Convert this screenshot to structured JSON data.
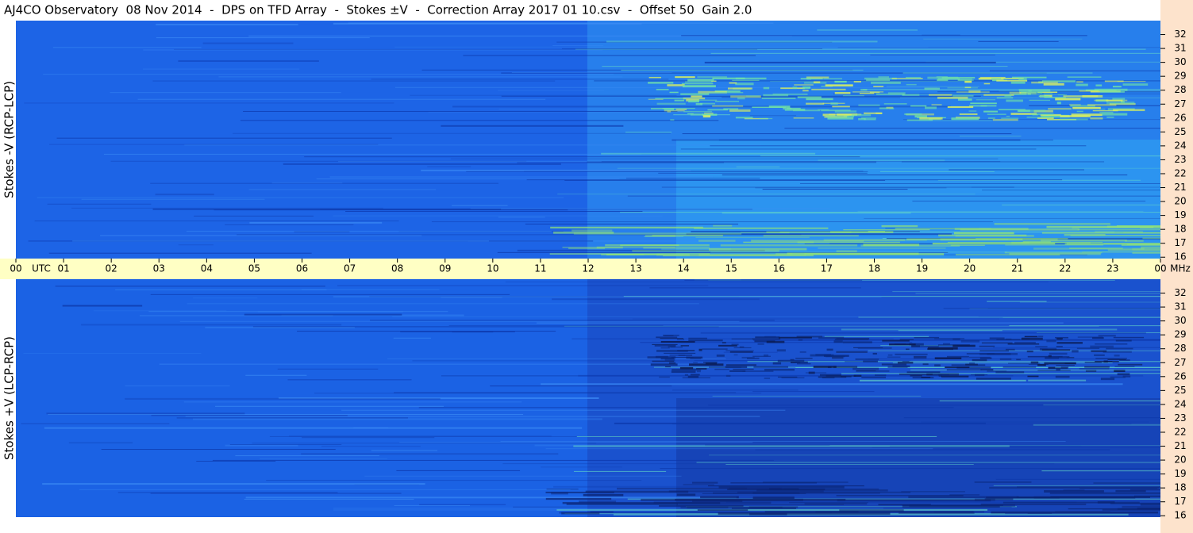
{
  "chart_data": {
    "type": "spectrogram",
    "title": "AJ4CO Observatory  08 Nov 2014  -  DPS on TFD Array  -  Stokes ±V  -  Correction Array 2017 01 10.csv  -  Offset 50  Gain 2.0",
    "x_label": "UTC",
    "y_label": "MHz",
    "xlim": [
      0,
      24
    ],
    "xticks": [
      {
        "value": 0,
        "label": "00"
      },
      {
        "value": 1,
        "label": "01"
      },
      {
        "value": 2,
        "label": "02"
      },
      {
        "value": 3,
        "label": "03"
      },
      {
        "value": 4,
        "label": "04"
      },
      {
        "value": 5,
        "label": "05"
      },
      {
        "value": 6,
        "label": "06"
      },
      {
        "value": 7,
        "label": "07"
      },
      {
        "value": 8,
        "label": "08"
      },
      {
        "value": 9,
        "label": "09"
      },
      10,
      11,
      12,
      13,
      14,
      15,
      16,
      17,
      18,
      19,
      20,
      21,
      22,
      23,
      {
        "value": 24,
        "label": "00"
      }
    ],
    "ylim": [
      15.9,
      33
    ],
    "yticks": [
      16,
      17,
      18,
      19,
      20,
      21,
      22,
      23,
      24,
      25,
      26,
      27,
      28,
      29,
      30,
      31,
      32
    ],
    "panels": [
      {
        "name": "Stokes -V (RCP-LCP)"
      },
      {
        "name": "Stokes +V (LCP-RCP)"
      }
    ]
  }
}
